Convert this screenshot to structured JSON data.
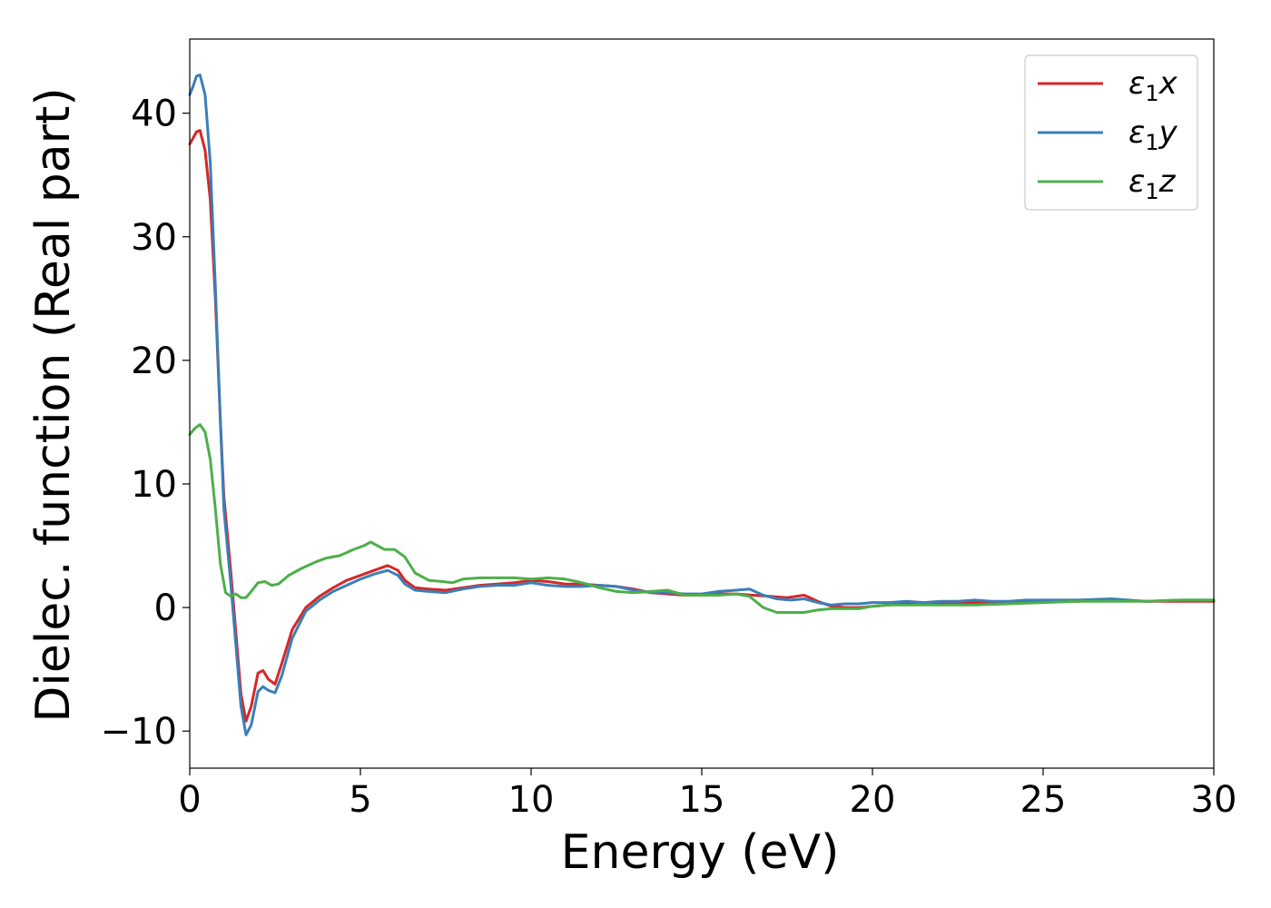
{
  "chart_data": {
    "type": "line",
    "title": "",
    "xlabel": "Energy (eV)",
    "ylabel": "Dielec. function (Real part)",
    "xlim": [
      0,
      30
    ],
    "ylim": [
      -13,
      46
    ],
    "xticks": [
      {
        "value": 0,
        "label": "0"
      },
      {
        "value": 5,
        "label": "5"
      },
      {
        "value": 10,
        "label": "10"
      },
      {
        "value": 15,
        "label": "15"
      },
      {
        "value": 20,
        "label": "20"
      },
      {
        "value": 25,
        "label": "25"
      },
      {
        "value": 30,
        "label": "30"
      }
    ],
    "yticks": [
      {
        "value": -10,
        "label": "−10"
      },
      {
        "value": 0,
        "label": "0"
      },
      {
        "value": 10,
        "label": "10"
      },
      {
        "value": 20,
        "label": "20"
      },
      {
        "value": 30,
        "label": "30"
      },
      {
        "value": 40,
        "label": "40"
      }
    ],
    "grid": false,
    "legend_position": "top-right",
    "series": [
      {
        "name": "ε₁x",
        "legend_base": "ε",
        "legend_sub": "1",
        "legend_suffix": "x",
        "color": "#d62728",
        "points": [
          [
            0,
            37.5
          ],
          [
            0.1,
            38
          ],
          [
            0.2,
            38.5
          ],
          [
            0.3,
            38.6
          ],
          [
            0.45,
            37
          ],
          [
            0.6,
            33
          ],
          [
            0.75,
            25
          ],
          [
            0.9,
            15
          ],
          [
            1.0,
            9
          ],
          [
            1.2,
            3
          ],
          [
            1.35,
            -2
          ],
          [
            1.5,
            -7
          ],
          [
            1.65,
            -9.2
          ],
          [
            1.8,
            -8
          ],
          [
            2.0,
            -5.3
          ],
          [
            2.15,
            -5.1
          ],
          [
            2.3,
            -5.8
          ],
          [
            2.5,
            -6.2
          ],
          [
            2.7,
            -4.5
          ],
          [
            3.0,
            -1.8
          ],
          [
            3.4,
            0
          ],
          [
            3.8,
            0.9
          ],
          [
            4.2,
            1.6
          ],
          [
            4.6,
            2.2
          ],
          [
            5.0,
            2.6
          ],
          [
            5.4,
            3.0
          ],
          [
            5.8,
            3.4
          ],
          [
            6.1,
            3.0
          ],
          [
            6.3,
            2.2
          ],
          [
            6.6,
            1.6
          ],
          [
            7.0,
            1.5
          ],
          [
            7.5,
            1.4
          ],
          [
            8.0,
            1.6
          ],
          [
            8.5,
            1.8
          ],
          [
            9.0,
            1.9
          ],
          [
            9.5,
            2.0
          ],
          [
            10.0,
            2.2
          ],
          [
            10.5,
            2.1
          ],
          [
            11.0,
            1.9
          ],
          [
            11.5,
            1.9
          ],
          [
            12.0,
            1.8
          ],
          [
            12.5,
            1.7
          ],
          [
            13.0,
            1.5
          ],
          [
            13.5,
            1.2
          ],
          [
            14.0,
            1.1
          ],
          [
            14.5,
            1.0
          ],
          [
            15.0,
            1.0
          ],
          [
            15.5,
            1.1
          ],
          [
            16.0,
            1.1
          ],
          [
            16.5,
            1.0
          ],
          [
            17.0,
            0.9
          ],
          [
            17.5,
            0.8
          ],
          [
            18.0,
            1.0
          ],
          [
            18.4,
            0.5
          ],
          [
            18.8,
            0.1
          ],
          [
            19.2,
            0.0
          ],
          [
            19.6,
            0.0
          ],
          [
            20.0,
            0.1
          ],
          [
            20.5,
            0.2
          ],
          [
            21.0,
            0.3
          ],
          [
            21.5,
            0.3
          ],
          [
            22.0,
            0.4
          ],
          [
            23.0,
            0.4
          ],
          [
            24.0,
            0.4
          ],
          [
            25.0,
            0.5
          ],
          [
            26.0,
            0.5
          ],
          [
            27.0,
            0.6
          ],
          [
            28.0,
            0.5
          ],
          [
            29.0,
            0.5
          ],
          [
            30.0,
            0.5
          ]
        ]
      },
      {
        "name": "ε₁y",
        "legend_base": "ε",
        "legend_sub": "1",
        "legend_suffix": "y",
        "color": "#3a7fb8",
        "points": [
          [
            0,
            41.5
          ],
          [
            0.1,
            42.2
          ],
          [
            0.2,
            43
          ],
          [
            0.3,
            43.1
          ],
          [
            0.45,
            41.5
          ],
          [
            0.6,
            36
          ],
          [
            0.75,
            26
          ],
          [
            0.9,
            15
          ],
          [
            1.0,
            8
          ],
          [
            1.2,
            2
          ],
          [
            1.35,
            -3
          ],
          [
            1.5,
            -8
          ],
          [
            1.65,
            -10.3
          ],
          [
            1.8,
            -9.5
          ],
          [
            2.0,
            -6.8
          ],
          [
            2.15,
            -6.4
          ],
          [
            2.3,
            -6.7
          ],
          [
            2.5,
            -6.9
          ],
          [
            2.7,
            -5.5
          ],
          [
            3.0,
            -2.5
          ],
          [
            3.4,
            -0.3
          ],
          [
            3.8,
            0.6
          ],
          [
            4.2,
            1.3
          ],
          [
            4.6,
            1.8
          ],
          [
            5.0,
            2.3
          ],
          [
            5.4,
            2.7
          ],
          [
            5.8,
            3.0
          ],
          [
            6.1,
            2.6
          ],
          [
            6.3,
            1.9
          ],
          [
            6.6,
            1.4
          ],
          [
            7.0,
            1.3
          ],
          [
            7.5,
            1.2
          ],
          [
            8.0,
            1.5
          ],
          [
            8.5,
            1.7
          ],
          [
            9.0,
            1.8
          ],
          [
            9.5,
            1.8
          ],
          [
            10.0,
            2.0
          ],
          [
            10.5,
            1.8
          ],
          [
            11.0,
            1.7
          ],
          [
            11.5,
            1.7
          ],
          [
            12.0,
            1.8
          ],
          [
            12.5,
            1.7
          ],
          [
            13.0,
            1.4
          ],
          [
            13.5,
            1.2
          ],
          [
            14.0,
            1.2
          ],
          [
            14.5,
            1.1
          ],
          [
            15.0,
            1.1
          ],
          [
            15.5,
            1.3
          ],
          [
            16.0,
            1.4
          ],
          [
            16.4,
            1.5
          ],
          [
            16.8,
            1.0
          ],
          [
            17.2,
            0.7
          ],
          [
            17.6,
            0.6
          ],
          [
            18.0,
            0.7
          ],
          [
            18.4,
            0.4
          ],
          [
            18.8,
            0.2
          ],
          [
            19.2,
            0.3
          ],
          [
            19.6,
            0.3
          ],
          [
            20.0,
            0.4
          ],
          [
            20.5,
            0.4
          ],
          [
            21.0,
            0.5
          ],
          [
            21.5,
            0.4
          ],
          [
            22.0,
            0.5
          ],
          [
            22.5,
            0.5
          ],
          [
            23.0,
            0.6
          ],
          [
            23.5,
            0.5
          ],
          [
            24.0,
            0.5
          ],
          [
            24.5,
            0.6
          ],
          [
            25.0,
            0.6
          ],
          [
            26.0,
            0.6
          ],
          [
            27.0,
            0.7
          ],
          [
            27.5,
            0.6
          ],
          [
            28.0,
            0.5
          ],
          [
            29.0,
            0.6
          ],
          [
            30.0,
            0.6
          ]
        ]
      },
      {
        "name": "ε₁z",
        "legend_base": "ε",
        "legend_sub": "1",
        "legend_suffix": "z",
        "color": "#4daf4a",
        "points": [
          [
            0,
            14
          ],
          [
            0.15,
            14.5
          ],
          [
            0.3,
            14.8
          ],
          [
            0.45,
            14.2
          ],
          [
            0.6,
            12
          ],
          [
            0.75,
            8
          ],
          [
            0.9,
            3.5
          ],
          [
            1.05,
            1.2
          ],
          [
            1.2,
            0.9
          ],
          [
            1.35,
            1.1
          ],
          [
            1.5,
            0.8
          ],
          [
            1.65,
            0.8
          ],
          [
            1.8,
            1.3
          ],
          [
            2.0,
            2.0
          ],
          [
            2.2,
            2.1
          ],
          [
            2.4,
            1.8
          ],
          [
            2.6,
            1.9
          ],
          [
            2.9,
            2.6
          ],
          [
            3.3,
            3.2
          ],
          [
            3.7,
            3.7
          ],
          [
            4.0,
            4.0
          ],
          [
            4.4,
            4.2
          ],
          [
            4.8,
            4.7
          ],
          [
            5.1,
            5.0
          ],
          [
            5.3,
            5.3
          ],
          [
            5.5,
            5.0
          ],
          [
            5.7,
            4.7
          ],
          [
            6.0,
            4.7
          ],
          [
            6.3,
            4.1
          ],
          [
            6.6,
            2.8
          ],
          [
            7.0,
            2.2
          ],
          [
            7.4,
            2.1
          ],
          [
            7.7,
            2.0
          ],
          [
            8.0,
            2.3
          ],
          [
            8.5,
            2.4
          ],
          [
            9.0,
            2.4
          ],
          [
            9.5,
            2.4
          ],
          [
            10.0,
            2.3
          ],
          [
            10.5,
            2.4
          ],
          [
            11.0,
            2.3
          ],
          [
            11.5,
            2.0
          ],
          [
            12.0,
            1.6
          ],
          [
            12.5,
            1.3
          ],
          [
            13.0,
            1.2
          ],
          [
            13.5,
            1.3
          ],
          [
            14.0,
            1.4
          ],
          [
            14.5,
            1.0
          ],
          [
            15.0,
            1.0
          ],
          [
            15.5,
            1.0
          ],
          [
            16.0,
            1.1
          ],
          [
            16.4,
            0.9
          ],
          [
            16.8,
            0.0
          ],
          [
            17.2,
            -0.4
          ],
          [
            17.6,
            -0.4
          ],
          [
            18.0,
            -0.4
          ],
          [
            18.4,
            -0.2
          ],
          [
            18.8,
            -0.1
          ],
          [
            19.2,
            -0.1
          ],
          [
            19.6,
            -0.1
          ],
          [
            20.0,
            0.1
          ],
          [
            20.5,
            0.2
          ],
          [
            21.0,
            0.2
          ],
          [
            21.5,
            0.2
          ],
          [
            22.0,
            0.2
          ],
          [
            23.0,
            0.2
          ],
          [
            24.0,
            0.3
          ],
          [
            25.0,
            0.4
          ],
          [
            26.0,
            0.5
          ],
          [
            27.0,
            0.5
          ],
          [
            28.0,
            0.5
          ],
          [
            29.0,
            0.6
          ],
          [
            30.0,
            0.6
          ]
        ]
      }
    ]
  }
}
